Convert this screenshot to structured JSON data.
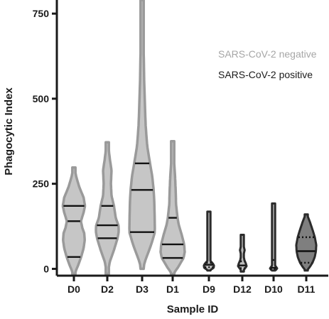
{
  "chart_data": {
    "type": "violin",
    "xlabel": "Sample ID",
    "ylabel": "Phagocytic Index",
    "ylim": [
      -20,
      790
    ],
    "yticks": [
      0,
      250,
      500,
      750
    ],
    "legend": {
      "placement": "top-right",
      "entries": [
        {
          "label": "SARS-CoV-2 negative",
          "color": "#a6a6a6"
        },
        {
          "label": "SARS-CoV-2 positive",
          "color": "#1a1a1a"
        }
      ]
    },
    "colors": {
      "negative_fill": "#c6c6c6",
      "negative_stroke": "#9a9a9a",
      "positive_fill": "#bdbdbd",
      "positive_stroke": "#2b2b2b",
      "d11_fill": "#7f7f7f"
    },
    "categories": [
      "D0",
      "D2",
      "D3",
      "D1",
      "D9",
      "D12",
      "D10",
      "D11"
    ],
    "groups": [
      "negative",
      "negative",
      "negative",
      "negative",
      "positive",
      "positive",
      "positive",
      "positive"
    ],
    "violins": [
      {
        "id": "D0",
        "group": "negative",
        "min": -15,
        "max": 298,
        "q1": 35,
        "median": 140,
        "q3": 185,
        "profile": [
          [
            -15,
            0.05
          ],
          [
            10,
            0.35
          ],
          [
            35,
            0.6
          ],
          [
            60,
            0.8
          ],
          [
            85,
            0.9
          ],
          [
            105,
            0.85
          ],
          [
            120,
            0.7
          ],
          [
            140,
            0.58
          ],
          [
            165,
            0.8
          ],
          [
            185,
            0.92
          ],
          [
            210,
            0.8
          ],
          [
            240,
            0.45
          ],
          [
            270,
            0.2
          ],
          [
            298,
            0.03
          ]
        ]
      },
      {
        "id": "D2",
        "group": "negative",
        "min": -15,
        "max": 372,
        "q1": 90,
        "median": 128,
        "q3": 185,
        "profile": [
          [
            -15,
            0.04
          ],
          [
            20,
            0.2
          ],
          [
            55,
            0.55
          ],
          [
            90,
            0.85
          ],
          [
            110,
            0.95
          ],
          [
            128,
            0.92
          ],
          [
            150,
            0.7
          ],
          [
            185,
            0.55
          ],
          [
            215,
            0.35
          ],
          [
            250,
            0.3
          ],
          [
            290,
            0.35
          ],
          [
            320,
            0.22
          ],
          [
            350,
            0.12
          ],
          [
            372,
            0.03
          ]
        ]
      },
      {
        "id": "D3",
        "group": "negative",
        "min": 0,
        "max": 790,
        "q1": 108,
        "median": 232,
        "q3": 310,
        "profile": [
          [
            0,
            0.05
          ],
          [
            30,
            0.3
          ],
          [
            70,
            0.7
          ],
          [
            108,
            1.0
          ],
          [
            150,
            0.98
          ],
          [
            200,
            0.95
          ],
          [
            232,
            0.9
          ],
          [
            270,
            0.8
          ],
          [
            310,
            0.62
          ],
          [
            360,
            0.4
          ],
          [
            420,
            0.28
          ],
          [
            480,
            0.22
          ],
          [
            540,
            0.17
          ],
          [
            600,
            0.14
          ],
          [
            660,
            0.11
          ],
          [
            720,
            0.07
          ],
          [
            760,
            0.04
          ],
          [
            790,
            0.01
          ]
        ]
      },
      {
        "id": "D1",
        "group": "negative",
        "min": -15,
        "max": 375,
        "q1": 32,
        "median": 72,
        "q3": 150,
        "profile": [
          [
            -15,
            0.05
          ],
          [
            5,
            0.45
          ],
          [
            32,
            0.9
          ],
          [
            50,
            1.0
          ],
          [
            72,
            0.95
          ],
          [
            100,
            0.75
          ],
          [
            130,
            0.5
          ],
          [
            150,
            0.4
          ],
          [
            190,
            0.28
          ],
          [
            230,
            0.25
          ],
          [
            270,
            0.2
          ],
          [
            310,
            0.13
          ],
          [
            345,
            0.08
          ],
          [
            375,
            0.02
          ]
        ]
      },
      {
        "id": "D9",
        "group": "positive",
        "min": -5,
        "max": 168,
        "q1": 5,
        "median": 12,
        "q3": 18,
        "profile": [
          [
            -5,
            0.08
          ],
          [
            3,
            0.55
          ],
          [
            10,
            0.6
          ],
          [
            16,
            0.45
          ],
          [
            25,
            0.12
          ],
          [
            40,
            0.05
          ],
          [
            60,
            0.05
          ],
          [
            100,
            0.05
          ],
          [
            140,
            0.05
          ],
          [
            158,
            0.08
          ],
          [
            164,
            0.22
          ],
          [
            168,
            0.02
          ]
        ]
      },
      {
        "id": "D12",
        "group": "positive",
        "min": -8,
        "max": 100,
        "q1": 2,
        "median": 10,
        "q3": 22,
        "profile": [
          [
            -8,
            0.04
          ],
          [
            0,
            0.3
          ],
          [
            8,
            0.55
          ],
          [
            16,
            0.45
          ],
          [
            25,
            0.28
          ],
          [
            35,
            0.18
          ],
          [
            45,
            0.2
          ],
          [
            55,
            0.3
          ],
          [
            65,
            0.2
          ],
          [
            78,
            0.1
          ],
          [
            90,
            0.05
          ],
          [
            100,
            0.02
          ]
        ]
      },
      {
        "id": "D10",
        "group": "positive",
        "min": -5,
        "max": 192,
        "q1": 0,
        "median": 3,
        "q3": 26,
        "profile": [
          [
            -5,
            0.1
          ],
          [
            0,
            0.5
          ],
          [
            5,
            0.35
          ],
          [
            12,
            0.1
          ],
          [
            25,
            0.06
          ],
          [
            40,
            0.05
          ],
          [
            80,
            0.05
          ],
          [
            120,
            0.05
          ],
          [
            160,
            0.05
          ],
          [
            185,
            0.08
          ],
          [
            189,
            0.2
          ],
          [
            192,
            0.02
          ]
        ]
      },
      {
        "id": "D11",
        "group": "positive",
        "min": -5,
        "max": 160,
        "q1": 18,
        "median": 52,
        "q3": 93,
        "profile": [
          [
            -5,
            0.05
          ],
          [
            5,
            0.3
          ],
          [
            18,
            0.55
          ],
          [
            35,
            0.75
          ],
          [
            52,
            0.85
          ],
          [
            70,
            0.88
          ],
          [
            93,
            0.75
          ],
          [
            115,
            0.55
          ],
          [
            135,
            0.35
          ],
          [
            150,
            0.18
          ],
          [
            160,
            0.03
          ]
        ]
      }
    ]
  }
}
